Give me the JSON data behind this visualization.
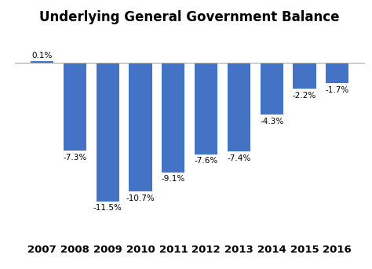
{
  "title": "Underlying General Government Balance",
  "categories": [
    "2007",
    "2008",
    "2009",
    "2010",
    "2011",
    "2012",
    "2013",
    "2014",
    "2015",
    "2016"
  ],
  "values": [
    0.1,
    -7.3,
    -11.5,
    -10.7,
    -9.1,
    -7.6,
    -7.4,
    -4.3,
    -2.2,
    -1.7
  ],
  "labels": [
    "0.1%",
    "-7.3%",
    "-11.5%",
    "-10.7%",
    "-9.1%",
    "-7.6%",
    "-7.4%",
    "-4.3%",
    "-2.2%",
    "-1.7%"
  ],
  "bar_color": "#4472C4",
  "background_color": "#ffffff",
  "ylim": [
    -14,
    2.5
  ],
  "label_fontsize": 7.5,
  "title_fontsize": 12,
  "xtick_fontsize": 9.5
}
